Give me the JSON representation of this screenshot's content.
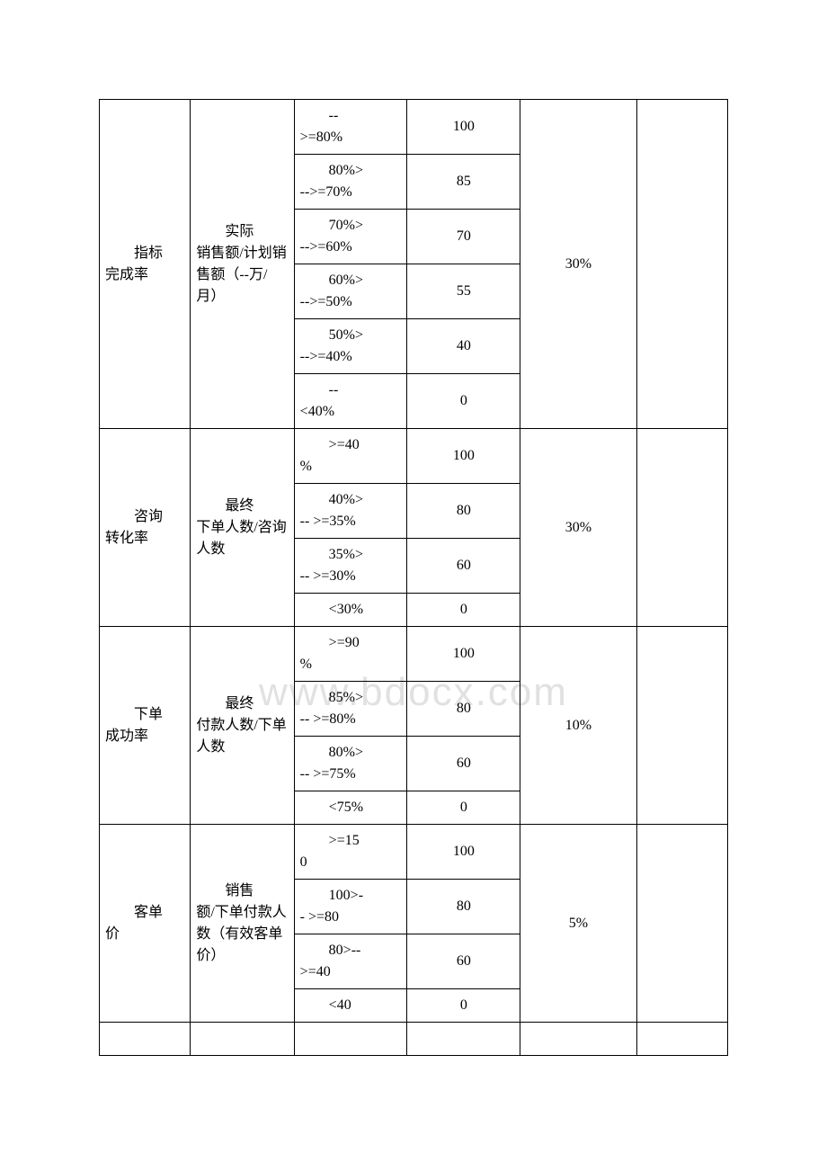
{
  "watermark": "www.bdocx.com",
  "table": {
    "border_color": "#000000",
    "background_color": "#ffffff",
    "text_color": "#000000",
    "font_family": "SimSun",
    "font_size_pt": 12,
    "column_widths_pct": [
      14.5,
      16.5,
      18,
      18,
      18.5,
      14.5
    ],
    "sections": [
      {
        "metric_label_line1": "　　指标",
        "metric_label_line2": "完成率",
        "formula_label_line1": "　　实际",
        "formula_label_line2": "销售额/计划销售额（--万/月）",
        "weight": "30%",
        "rows": [
          {
            "threshold_line1": "　　--",
            "threshold_line2": ">=80%",
            "score": "100"
          },
          {
            "threshold_line1": "　　80%>",
            "threshold_line2": "-->=70%",
            "score": "85"
          },
          {
            "threshold_line1": "　　70%>",
            "threshold_line2": "-->=60%",
            "score": "70"
          },
          {
            "threshold_line1": "　　60%>",
            "threshold_line2": "-->=50%",
            "score": "55"
          },
          {
            "threshold_line1": "　　50%>",
            "threshold_line2": "-->=40%",
            "score": "40"
          },
          {
            "threshold_line1": "　　--",
            "threshold_line2": "<40%",
            "score": "0"
          }
        ]
      },
      {
        "metric_label_line1": "　　咨询",
        "metric_label_line2": "转化率",
        "formula_label_line1": "　　最终",
        "formula_label_line2": "下单人数/咨询人数",
        "weight": "30%",
        "rows": [
          {
            "threshold_line1": "　　>=40",
            "threshold_line2": "%",
            "score": "100"
          },
          {
            "threshold_line1": "　　40%>",
            "threshold_line2": "-- >=35%",
            "score": "80"
          },
          {
            "threshold_line1": "　　35%>",
            "threshold_line2": "-- >=30%",
            "score": "60"
          },
          {
            "threshold_line1": "　　<30%",
            "threshold_line2": "",
            "score": "0"
          }
        ]
      },
      {
        "metric_label_line1": "　　下单",
        "metric_label_line2": "成功率",
        "formula_label_line1": "　　最终",
        "formula_label_line2": "付款人数/下单人数",
        "weight": "10%",
        "rows": [
          {
            "threshold_line1": "　　>=90",
            "threshold_line2": "%",
            "score": "100"
          },
          {
            "threshold_line1": "　　85%>",
            "threshold_line2": "-- >=80%",
            "score": "80"
          },
          {
            "threshold_line1": "　　80%>",
            "threshold_line2": "-- >=75%",
            "score": "60"
          },
          {
            "threshold_line1": "　　<75%",
            "threshold_line2": "",
            "score": "0"
          }
        ]
      },
      {
        "metric_label_line1": "　　客单",
        "metric_label_line2": "价",
        "formula_label_line1": "　　销售",
        "formula_label_line2": "额/下单付款人数（有效客单价）",
        "weight": "5%",
        "rows": [
          {
            "threshold_line1": "　　>=15",
            "threshold_line2": "0",
            "score": "100"
          },
          {
            "threshold_line1": "　　100>-",
            "threshold_line2": "- >=80",
            "score": "80"
          },
          {
            "threshold_line1": "　　80>--",
            "threshold_line2": ">=40",
            "score": "60"
          },
          {
            "threshold_line1": "　　<40",
            "threshold_line2": "",
            "score": "0"
          }
        ]
      }
    ],
    "footer_row": {
      "cells": [
        "",
        "",
        "",
        "",
        "",
        ""
      ]
    }
  }
}
